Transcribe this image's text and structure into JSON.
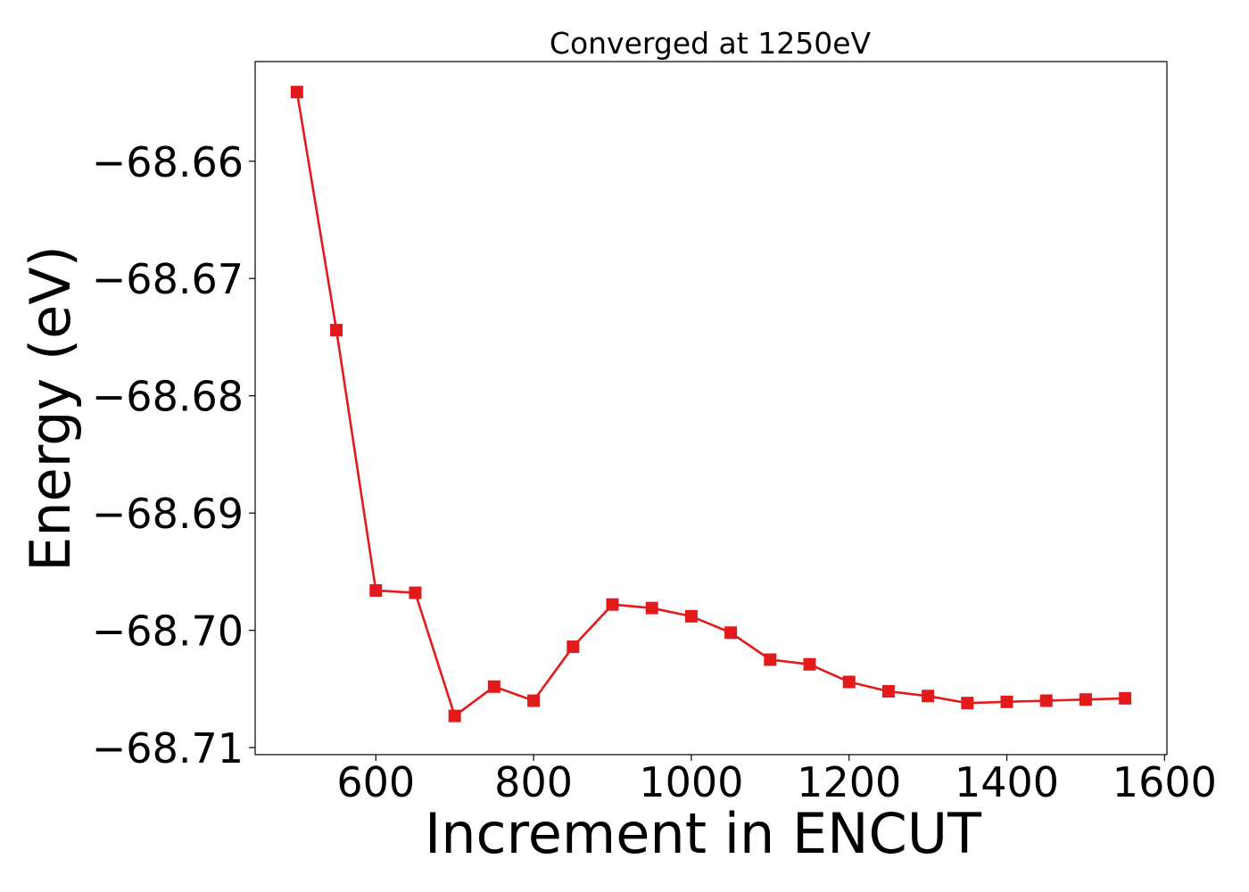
{
  "chart_data": {
    "type": "line",
    "title": "Converged at 1250eV",
    "xlabel": "Increment in ENCUT",
    "ylabel": "Energy (eV)",
    "xlim": [
      447,
      1603
    ],
    "ylim": [
      -68.7106,
      -68.6515
    ],
    "xticks": [
      600,
      800,
      1000,
      1200,
      1400,
      1600
    ],
    "xtick_labels": [
      "600",
      "800",
      "1000",
      "1200",
      "1400",
      "1600"
    ],
    "yticks": [
      -68.66,
      -68.67,
      -68.68,
      -68.69,
      -68.7,
      -68.71
    ],
    "ytick_labels": [
      "−68.66",
      "−68.67",
      "−68.68",
      "−68.69",
      "−68.70",
      "−68.71"
    ],
    "grid": false,
    "series": [
      {
        "color": "#e31a1c",
        "marker": "square",
        "x": [
          500,
          550,
          600,
          650,
          700,
          750,
          800,
          850,
          900,
          950,
          1000,
          1050,
          1100,
          1150,
          1200,
          1250,
          1300,
          1350,
          1400,
          1450,
          1500,
          1550
        ],
        "y": [
          -68.6541,
          -68.6744,
          -68.6966,
          -68.6968,
          -68.7073,
          -68.7048,
          -68.706,
          -68.7014,
          -68.6978,
          -68.6981,
          -68.6988,
          -68.7002,
          -68.7025,
          -68.7029,
          -68.7044,
          -68.7052,
          -68.7056,
          -68.7062,
          -68.7061,
          -68.706,
          -68.7059,
          -68.7058
        ]
      }
    ]
  }
}
